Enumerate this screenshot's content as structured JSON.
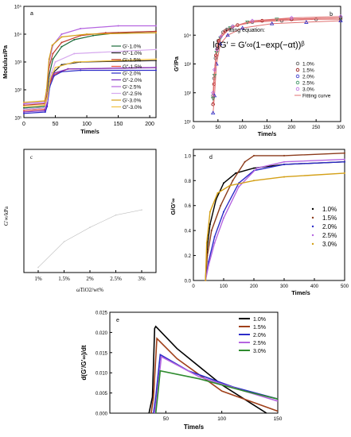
{
  "chart_data": [
    {
      "panel": "a",
      "type": "line",
      "xlabel": "Time/s",
      "ylabel": "Modulus/Pa",
      "xlim": [
        0,
        210
      ],
      "ylim_log10": [
        1,
        5
      ],
      "xticks": [
        0,
        50,
        100,
        150,
        200
      ],
      "yticks": [
        "10¹",
        "10²",
        "10³",
        "10⁴",
        "10⁵"
      ],
      "legend_position": "bottom-right",
      "series": [
        {
          "name": "G′-1.0%",
          "color": "#1a6b3a",
          "points": [
            [
              0,
              1.35
            ],
            [
              33,
              1.4
            ],
            [
              36,
              1.6
            ],
            [
              40,
              2.5
            ],
            [
              46,
              3.1
            ],
            [
              60,
              3.55
            ],
            [
              80,
              3.8
            ],
            [
              110,
              3.95
            ],
            [
              150,
              4.05
            ],
            [
              210,
              4.1
            ]
          ]
        },
        {
          "name": "G″-1.0%",
          "color": "#222222",
          "points": [
            [
              0,
              1.3
            ],
            [
              33,
              1.35
            ],
            [
              36,
              1.5
            ],
            [
              40,
              2.1
            ],
            [
              46,
              2.6
            ],
            [
              60,
              2.9
            ],
            [
              90,
              3.0
            ],
            [
              210,
              3.05
            ]
          ]
        },
        {
          "name": "G′-1.5%",
          "color": "#c0392b",
          "points": [
            [
              0,
              1.45
            ],
            [
              33,
              1.5
            ],
            [
              36,
              1.8
            ],
            [
              40,
              2.8
            ],
            [
              46,
              3.3
            ],
            [
              60,
              3.7
            ],
            [
              90,
              3.95
            ],
            [
              130,
              4.05
            ],
            [
              210,
              4.1
            ]
          ]
        },
        {
          "name": "G″-1.5%",
          "color": "#e74c3c",
          "points": [
            [
              0,
              1.25
            ],
            [
              33,
              1.3
            ],
            [
              37,
              1.5
            ],
            [
              41,
              2.2
            ],
            [
              48,
              2.55
            ],
            [
              70,
              2.75
            ],
            [
              210,
              2.8
            ]
          ]
        },
        {
          "name": "G′-2.0%",
          "color": "#2c2cc8",
          "points": [
            [
              0,
              1.15
            ],
            [
              34,
              1.2
            ],
            [
              37,
              1.4
            ],
            [
              41,
              2.1
            ],
            [
              48,
              2.5
            ],
            [
              60,
              2.65
            ],
            [
              90,
              2.7
            ],
            [
              210,
              2.7
            ]
          ]
        },
        {
          "name": "G″-2.0%",
          "color": "#7b2cbf",
          "points": [
            [
              0,
              1.2
            ],
            [
              33,
              1.25
            ],
            [
              37,
              1.5
            ],
            [
              41,
              2.3
            ],
            [
              48,
              2.6
            ],
            [
              70,
              2.75
            ],
            [
              210,
              2.8
            ]
          ]
        },
        {
          "name": "G′-2.5%",
          "color": "#b565e0",
          "points": [
            [
              0,
              1.5
            ],
            [
              33,
              1.55
            ],
            [
              36,
              1.9
            ],
            [
              40,
              3.0
            ],
            [
              46,
              3.6
            ],
            [
              60,
              4.0
            ],
            [
              90,
              4.2
            ],
            [
              150,
              4.3
            ],
            [
              210,
              4.3
            ]
          ]
        },
        {
          "name": "G″-2.5%",
          "color": "#d6a8ee",
          "points": [
            [
              0,
              1.3
            ],
            [
              33,
              1.35
            ],
            [
              37,
              1.6
            ],
            [
              42,
              2.5
            ],
            [
              50,
              3.0
            ],
            [
              80,
              3.3
            ],
            [
              210,
              3.45
            ]
          ]
        },
        {
          "name": "G′-3.0%",
          "color": "#d4a017",
          "points": [
            [
              0,
              1.55
            ],
            [
              33,
              1.6
            ],
            [
              36,
              2.0
            ],
            [
              40,
              3.1
            ],
            [
              45,
              3.6
            ],
            [
              60,
              3.9
            ],
            [
              100,
              4.0
            ],
            [
              210,
              4.05
            ]
          ]
        },
        {
          "name": "G″-3.0%",
          "color": "#f0c040",
          "points": [
            [
              0,
              1.4
            ],
            [
              33,
              1.45
            ],
            [
              37,
              1.7
            ],
            [
              42,
              2.4
            ],
            [
              50,
              2.8
            ],
            [
              80,
              3.0
            ],
            [
              210,
              3.1
            ]
          ]
        }
      ]
    },
    {
      "panel": "b",
      "type": "scatter",
      "xlabel": "Time/s",
      "ylabel": "G′/Pa",
      "xlim": [
        0,
        300
      ],
      "ylim_log10": [
        1,
        5
      ],
      "xticks": [
        0,
        50,
        100,
        150,
        200,
        250,
        300
      ],
      "yticks": [
        "10¹",
        "10²",
        "10³",
        "10⁴"
      ],
      "annotation_title": "Fitting equation:",
      "annotation_equation": "lgG′ = G′∞(1−exp(−αt))ᵝ",
      "legend_position": "right",
      "series": [
        {
          "name": "1.0%",
          "color": "#555555",
          "marker": "circle",
          "points": [
            [
              40,
              1.9
            ],
            [
              42,
              2.5
            ],
            [
              45,
              3.2
            ],
            [
              50,
              3.8
            ],
            [
              60,
              4.1
            ],
            [
              80,
              4.3
            ],
            [
              120,
              4.45
            ],
            [
              180,
              4.5
            ],
            [
              250,
              4.55
            ],
            [
              300,
              4.55
            ]
          ]
        },
        {
          "name": "1.5%",
          "color": "#8b0000",
          "marker": "circle",
          "points": [
            [
              40,
              1.6
            ],
            [
              42,
              2.3
            ],
            [
              46,
              3.3
            ],
            [
              52,
              3.8
            ],
            [
              65,
              4.15
            ],
            [
              90,
              4.35
            ],
            [
              140,
              4.5
            ],
            [
              200,
              4.55
            ],
            [
              300,
              4.6
            ]
          ]
        },
        {
          "name": "2.0%",
          "color": "#2c2cc8",
          "marker": "triangle",
          "points": [
            [
              40,
              1.3
            ],
            [
              43,
              1.9
            ],
            [
              47,
              3.0
            ],
            [
              55,
              3.7
            ],
            [
              70,
              4.0
            ],
            [
              100,
              4.25
            ],
            [
              160,
              4.4
            ],
            [
              230,
              4.45
            ],
            [
              300,
              4.5
            ]
          ]
        },
        {
          "name": "2.5%",
          "color": "#2e8b57",
          "marker": "triangle-down",
          "points": [
            [
              40,
              1.8
            ],
            [
              43,
              2.6
            ],
            [
              47,
              3.4
            ],
            [
              55,
              3.9
            ],
            [
              75,
              4.25
            ],
            [
              110,
              4.45
            ],
            [
              170,
              4.55
            ],
            [
              300,
              4.6
            ]
          ]
        },
        {
          "name": "3.0%",
          "color": "#b565e0",
          "marker": "diamond",
          "points": [
            [
              40,
              2.0
            ],
            [
              43,
              2.8
            ],
            [
              48,
              3.5
            ],
            [
              56,
              3.95
            ],
            [
              80,
              4.3
            ],
            [
              120,
              4.5
            ],
            [
              200,
              4.6
            ],
            [
              300,
              4.65
            ]
          ]
        }
      ],
      "fit_name": "Fitting curve",
      "fit_color": "#e07070"
    },
    {
      "panel": "c",
      "type": "line",
      "xlabel": "ωTiO2/wt%",
      "ylabel": "G′∞/kPa",
      "xtick_labels": [
        "1%",
        "1.5%",
        "2%",
        "2.5%",
        "3%"
      ],
      "ylim": [
        0,
        60
      ],
      "series": [
        {
          "name": "G′∞",
          "color": "#000000",
          "values": [
            2.5,
            15.0,
            22.0,
            28.0,
            30.5
          ]
        }
      ]
    },
    {
      "panel": "d",
      "type": "line",
      "xlabel": "Time/s",
      "ylabel": "G/G′∞",
      "xlim": [
        0,
        500
      ],
      "ylim": [
        0,
        1.05
      ],
      "xticks": [
        0,
        100,
        200,
        300,
        400,
        500
      ],
      "yticks": [
        "0.0",
        "0.2",
        "0.4",
        "0.6",
        "0.8",
        "1.0"
      ],
      "legend_position": "bottom-right",
      "series": [
        {
          "name": "1.0%",
          "color": "#000000",
          "points": [
            [
              40,
              0
            ],
            [
              45,
              0.25
            ],
            [
              55,
              0.45
            ],
            [
              75,
              0.65
            ],
            [
              100,
              0.78
            ],
            [
              140,
              0.86
            ],
            [
              200,
              0.9
            ],
            [
              300,
              0.93
            ],
            [
              500,
              0.95
            ]
          ]
        },
        {
          "name": "1.5%",
          "color": "#8b3a1a",
          "points": [
            [
              40,
              0
            ],
            [
              46,
              0.2
            ],
            [
              60,
              0.4
            ],
            [
              90,
              0.6
            ],
            [
              130,
              0.8
            ],
            [
              170,
              0.95
            ],
            [
              200,
              1.0
            ],
            [
              300,
              1.0
            ],
            [
              500,
              1.02
            ]
          ]
        },
        {
          "name": "2.0%",
          "color": "#2c2cc8",
          "points": [
            [
              40,
              0
            ],
            [
              50,
              0.15
            ],
            [
              70,
              0.35
            ],
            [
              100,
              0.55
            ],
            [
              150,
              0.78
            ],
            [
              200,
              0.88
            ],
            [
              300,
              0.93
            ],
            [
              500,
              0.95
            ]
          ]
        },
        {
          "name": "2.5%",
          "color": "#b565e0",
          "points": [
            [
              40,
              0
            ],
            [
              50,
              0.12
            ],
            [
              70,
              0.3
            ],
            [
              100,
              0.5
            ],
            [
              150,
              0.75
            ],
            [
              210,
              0.9
            ],
            [
              300,
              0.95
            ],
            [
              500,
              0.97
            ]
          ]
        },
        {
          "name": "3.0%",
          "color": "#d4a017",
          "points": [
            [
              40,
              0
            ],
            [
              44,
              0.3
            ],
            [
              55,
              0.55
            ],
            [
              80,
              0.7
            ],
            [
              120,
              0.76
            ],
            [
              200,
              0.8
            ],
            [
              300,
              0.83
            ],
            [
              500,
              0.86
            ]
          ]
        }
      ]
    },
    {
      "panel": "e",
      "type": "line",
      "xlabel": "Time/s",
      "ylabel": "d(G′/G′∞)/dt",
      "xlim": [
        0,
        150
      ],
      "ylim": [
        0,
        0.025
      ],
      "xticks": [
        50,
        100,
        150
      ],
      "yticks": [
        "0.000",
        "0.005",
        "0.010",
        "0.015",
        "0.020",
        "0.025"
      ],
      "legend_position": "top-right",
      "series": [
        {
          "name": "1.0%",
          "color": "#000000",
          "points": [
            [
              35,
              0
            ],
            [
              38,
              0.004
            ],
            [
              40,
              0.021
            ],
            [
              41,
              0.0215
            ],
            [
              60,
              0.016
            ],
            [
              100,
              0.007
            ],
            [
              140,
              0
            ]
          ]
        },
        {
          "name": "1.5%",
          "color": "#a0401a",
          "points": [
            [
              37,
              0
            ],
            [
              39,
              0.004
            ],
            [
              42,
              0.0185
            ],
            [
              60,
              0.0135
            ],
            [
              100,
              0.0055
            ],
            [
              150,
              0.0005
            ]
          ]
        },
        {
          "name": "2.0%",
          "color": "#2c2cc8",
          "points": [
            [
              39,
              0
            ],
            [
              41,
              0.004
            ],
            [
              45,
              0.0145
            ],
            [
              70,
              0.0105
            ],
            [
              110,
              0.0065
            ],
            [
              150,
              0.0035
            ]
          ]
        },
        {
          "name": "2.5%",
          "color": "#b565e0",
          "points": [
            [
              40,
              0
            ],
            [
              42,
              0.004
            ],
            [
              46,
              0.014
            ],
            [
              80,
              0.009
            ],
            [
              120,
              0.0055
            ],
            [
              150,
              0.003
            ]
          ]
        },
        {
          "name": "3.0%",
          "color": "#2e8b2e",
          "points": [
            [
              41,
              0
            ],
            [
              43,
              0.005
            ],
            [
              45,
              0.0105
            ],
            [
              80,
              0.0085
            ],
            [
              120,
              0.0055
            ],
            [
              150,
              0.0035
            ]
          ]
        }
      ]
    }
  ],
  "panel_labels": {
    "a": "a",
    "b": "b",
    "c": "c",
    "d": "d",
    "e": "e"
  }
}
